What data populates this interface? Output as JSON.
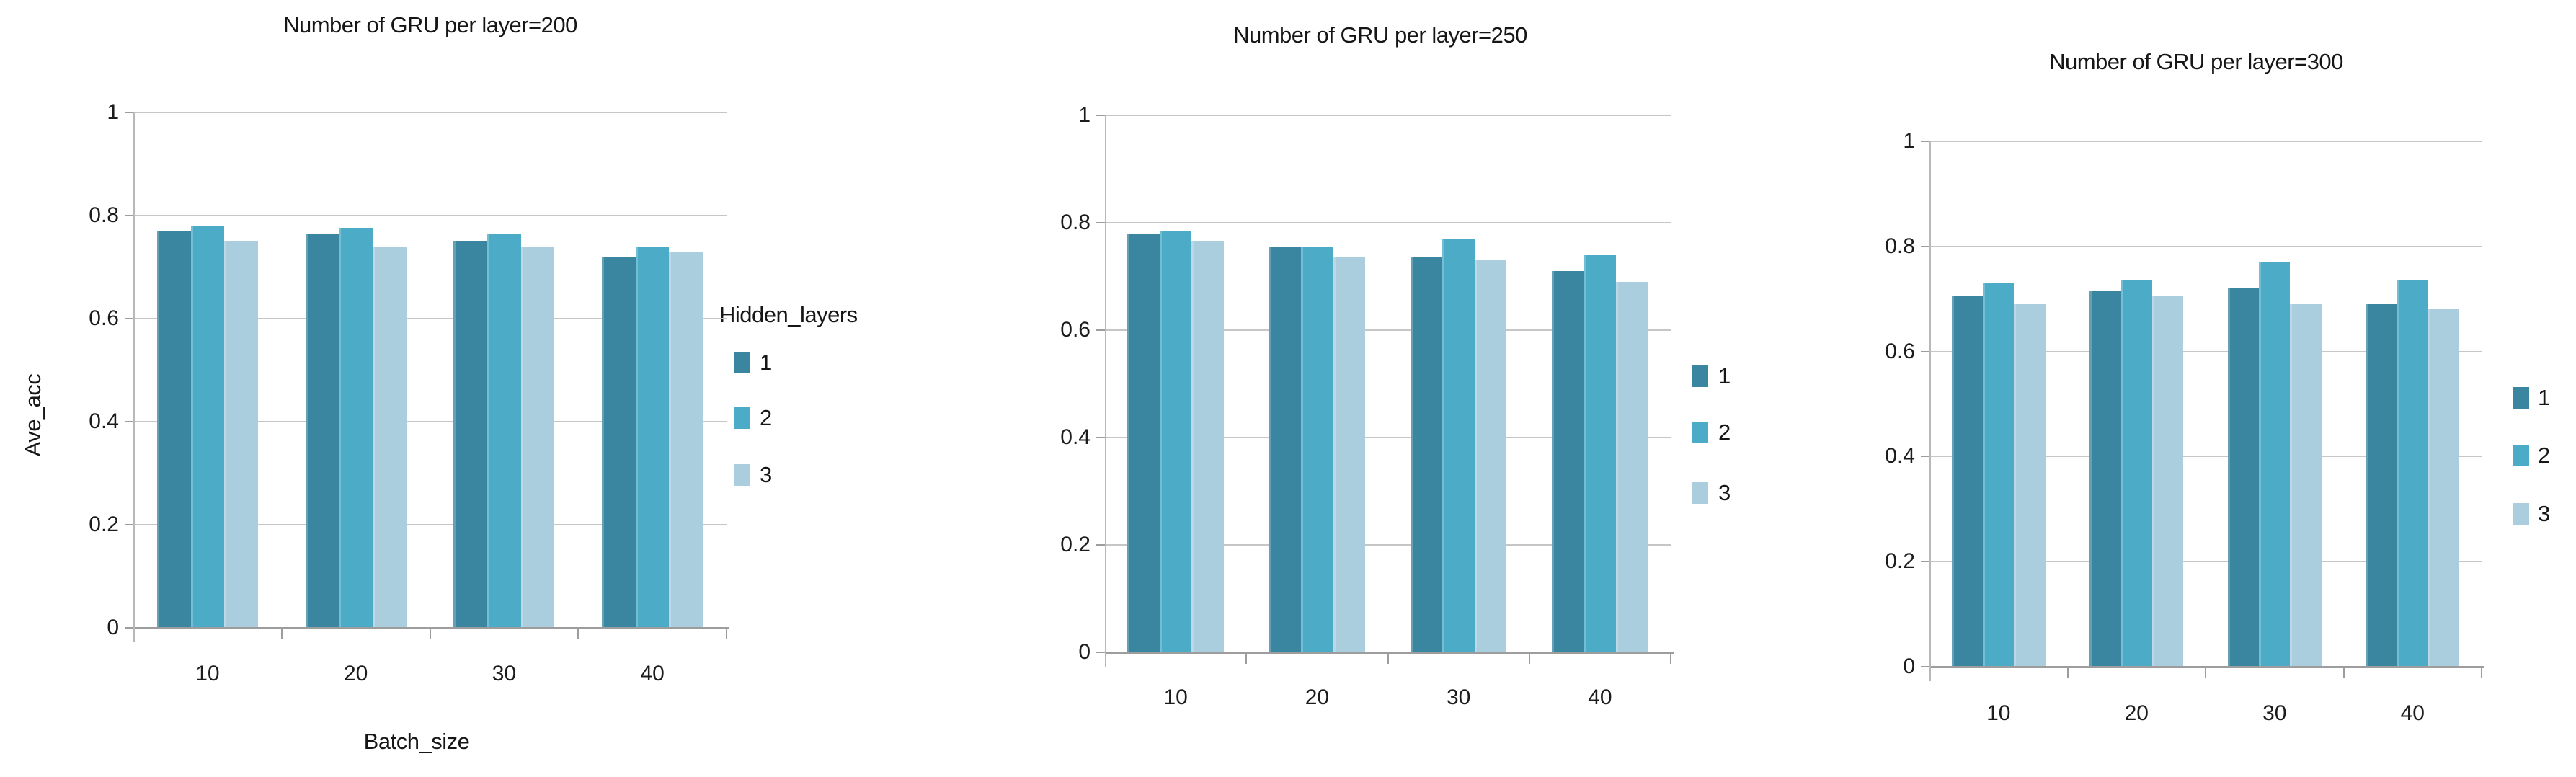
{
  "figure": {
    "background": "#ffffff"
  },
  "series_colors": {
    "1": "#3A86A0",
    "2": "#4CACC8",
    "3": "#ABCEDE"
  },
  "axis": {
    "grid_color": "#c6c6c6",
    "baseline_color": "#9d9d9d",
    "yaxis_color": "#b8b8b8",
    "tick_color": "#9d9d9d",
    "text_color": "#1c1c1c"
  },
  "chart_data": [
    {
      "type": "bar",
      "title": "Number of GRU per layer=200",
      "xlabel": "Batch_size",
      "ylabel": "Ave_acc",
      "categories": [
        "10",
        "20",
        "30",
        "40"
      ],
      "series": [
        {
          "name": "1",
          "values": [
            0.77,
            0.765,
            0.75,
            0.72
          ]
        },
        {
          "name": "2",
          "values": [
            0.78,
            0.775,
            0.765,
            0.74
          ]
        },
        {
          "name": "3",
          "values": [
            0.75,
            0.74,
            0.74,
            0.73
          ]
        }
      ],
      "ylim": [
        0,
        1
      ],
      "yticks": [
        0,
        0.2,
        0.4,
        0.6,
        0.8,
        1
      ],
      "ytick_labels": [
        "0",
        "0.2",
        "0.4",
        "0.6",
        "0.8",
        "1"
      ],
      "grid": true,
      "legend_title": "Hidden_layers",
      "legend_position": "right"
    },
    {
      "type": "bar",
      "title": "Number of GRU per layer=250",
      "xlabel": "",
      "ylabel": "",
      "categories": [
        "10",
        "20",
        "30",
        "40"
      ],
      "series": [
        {
          "name": "1",
          "values": [
            0.78,
            0.755,
            0.735,
            0.71
          ]
        },
        {
          "name": "2",
          "values": [
            0.785,
            0.755,
            0.77,
            0.74
          ]
        },
        {
          "name": "3",
          "values": [
            0.765,
            0.735,
            0.73,
            0.69
          ]
        }
      ],
      "ylim": [
        0,
        1
      ],
      "yticks": [
        0,
        0.2,
        0.4,
        0.6,
        0.8,
        1
      ],
      "ytick_labels": [
        "0",
        "0.2",
        "0.4",
        "0.6",
        "0.8",
        "1"
      ],
      "grid": true,
      "legend_title": null,
      "legend_position": "right"
    },
    {
      "type": "bar",
      "title": "Number of GRU per layer=300",
      "xlabel": "",
      "ylabel": "",
      "categories": [
        "10",
        "20",
        "30",
        "40"
      ],
      "series": [
        {
          "name": "1",
          "values": [
            0.705,
            0.715,
            0.72,
            0.69
          ]
        },
        {
          "name": "2",
          "values": [
            0.73,
            0.735,
            0.77,
            0.735
          ]
        },
        {
          "name": "3",
          "values": [
            0.69,
            0.705,
            0.69,
            0.68
          ]
        }
      ],
      "ylim": [
        0,
        1
      ],
      "yticks": [
        0,
        0.2,
        0.4,
        0.6,
        0.8,
        1
      ],
      "ytick_labels": [
        "0",
        "0.2",
        "0.4",
        "0.6",
        "0.8",
        "1"
      ],
      "grid": true,
      "legend_title": null,
      "legend_position": "right"
    }
  ]
}
